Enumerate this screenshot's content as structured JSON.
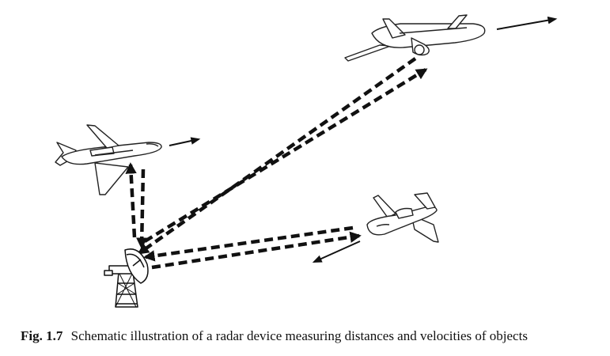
{
  "caption": {
    "label": "Fig. 1.7",
    "text": "Schematic illustration of a radar device measuring distances and velocities of objects"
  },
  "objects": [
    {
      "kind": "radar-antenna",
      "icon": "radar-dish-icon"
    },
    {
      "kind": "jet-left",
      "icon": "business-jet-icon"
    },
    {
      "kind": "airliner-top-right",
      "icon": "airliner-icon"
    },
    {
      "kind": "jet-right",
      "icon": "business-jet-icon"
    }
  ],
  "colors": {
    "line": "#111111",
    "fill": "#ffffff"
  }
}
